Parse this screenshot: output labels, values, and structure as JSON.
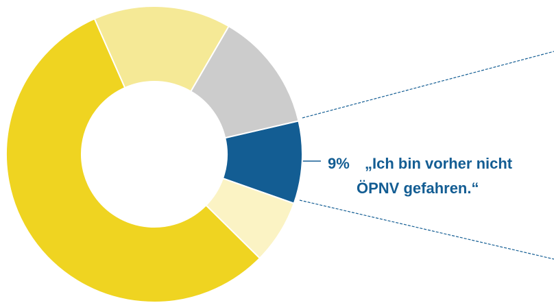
{
  "chart_data": {
    "type": "donut",
    "categories": [
      [
        "„Ich bin vorher nicht",
        "ÖPNV gefahren.“"
      ],
      null,
      null,
      null,
      null
    ],
    "values": [
      9,
      7,
      56,
      15,
      13
    ],
    "value_labels": [
      "9%",
      null,
      null,
      null,
      null
    ],
    "colors": [
      "#135d93",
      "#fbf3c4",
      "#efd421",
      "#f5e996",
      "#cccccc"
    ]
  }
}
